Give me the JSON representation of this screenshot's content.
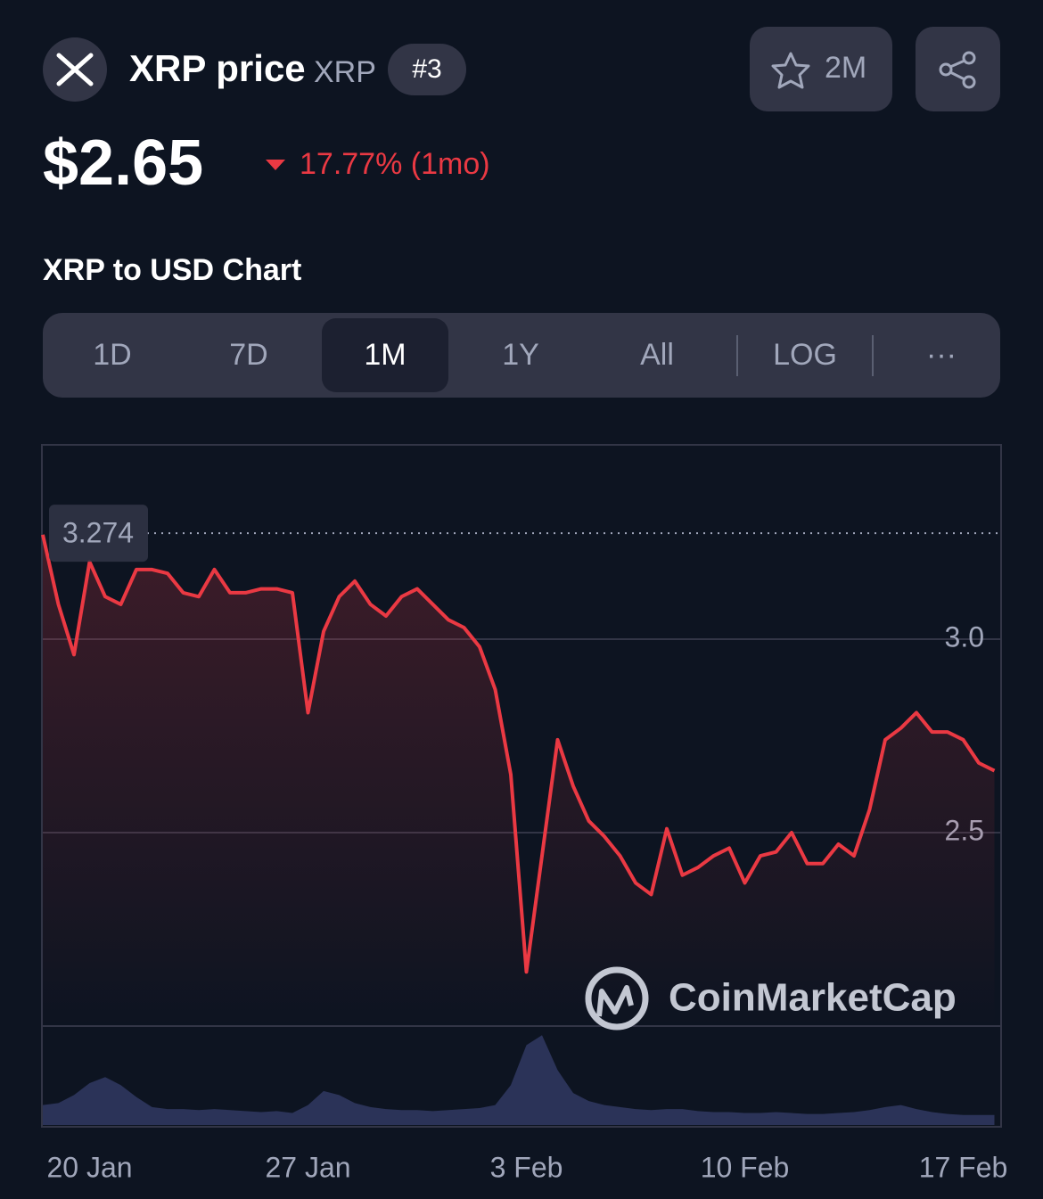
{
  "header": {
    "title": "XRP price",
    "symbol": "XRP",
    "rank": "#3",
    "watchlist": "2M",
    "price": "$2.65",
    "change": "17.77% (1mo)"
  },
  "section_title": "XRP to USD Chart",
  "tabs": {
    "items": [
      "1D",
      "7D",
      "1M",
      "1Y",
      "All",
      "LOG",
      "···"
    ],
    "active": 2
  },
  "watermark": "CoinMarketCap",
  "chart_data": {
    "type": "line",
    "color": "#ea3943",
    "volume_color": "#2b3358",
    "values": [
      3.27,
      3.09,
      2.96,
      3.2,
      3.11,
      3.09,
      3.18,
      3.18,
      3.17,
      3.12,
      3.11,
      3.18,
      3.12,
      3.12,
      3.13,
      3.13,
      3.12,
      2.81,
      3.02,
      3.11,
      3.15,
      3.09,
      3.06,
      3.11,
      3.13,
      3.09,
      3.05,
      3.03,
      2.98,
      2.87,
      2.65,
      2.14,
      2.44,
      2.74,
      2.62,
      2.53,
      2.49,
      2.44,
      2.37,
      2.34,
      2.51,
      2.39,
      2.41,
      2.44,
      2.46,
      2.37,
      2.44,
      2.45,
      2.5,
      2.42,
      2.42,
      2.47,
      2.44,
      2.56,
      2.74,
      2.77,
      2.81,
      2.76,
      2.76,
      2.74,
      2.68,
      2.66
    ],
    "volume": [
      20,
      22,
      30,
      42,
      48,
      40,
      28,
      18,
      16,
      16,
      15,
      16,
      15,
      14,
      13,
      14,
      12,
      20,
      34,
      30,
      22,
      18,
      16,
      15,
      15,
      14,
      15,
      16,
      17,
      20,
      40,
      80,
      90,
      55,
      32,
      24,
      20,
      18,
      16,
      15,
      16,
      16,
      14,
      13,
      13,
      12,
      12,
      13,
      12,
      11,
      11,
      12,
      13,
      15,
      18,
      20,
      16,
      13,
      11,
      10,
      10,
      10
    ],
    "high": 3.274,
    "ylim": [
      2.0,
      3.5
    ],
    "yticks": [
      2.5,
      {
        "value": 3,
        "label": "3.0"
      }
    ],
    "xticks": [
      {
        "value": 3,
        "label": "20 Jan"
      },
      {
        "value": 17,
        "label": "27 Jan"
      },
      {
        "value": 31,
        "label": "3 Feb"
      },
      {
        "value": 45,
        "label": "10 Feb"
      },
      {
        "value": 59,
        "label": "17 Feb"
      }
    ],
    "grid": true
  }
}
